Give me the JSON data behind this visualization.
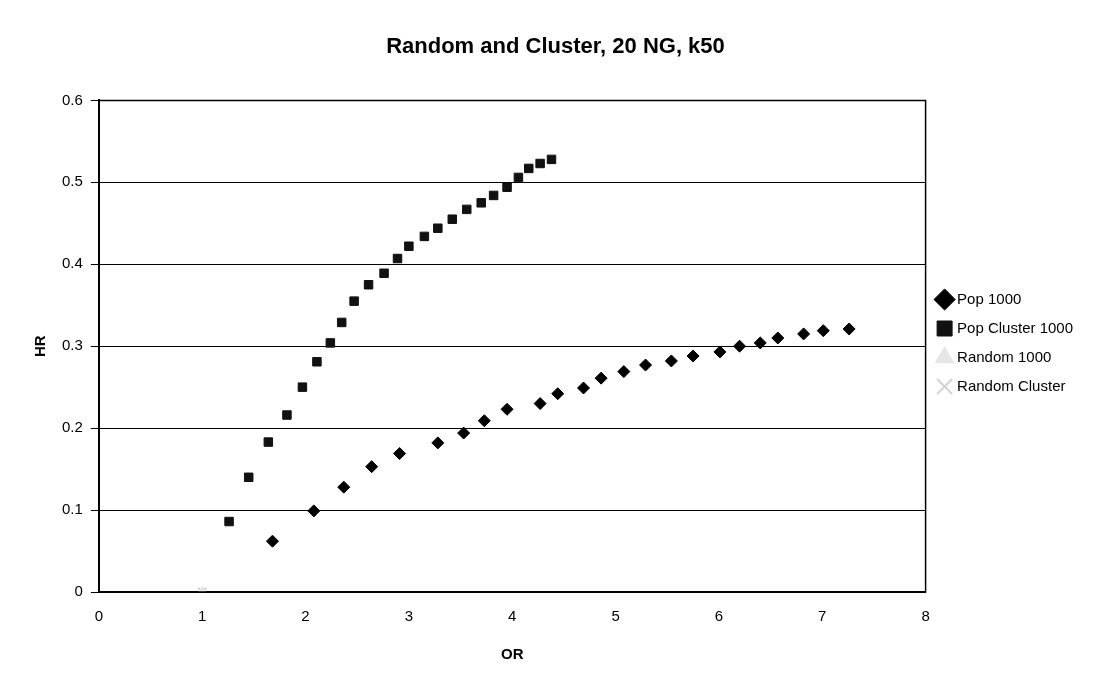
{
  "chart_data": {
    "type": "scatter",
    "title": "Random and Cluster, 20 NG, k50",
    "xlabel": "OR",
    "ylabel": "HR",
    "xlim": [
      0,
      8
    ],
    "xticks": [
      0,
      1,
      2,
      3,
      4,
      5,
      6,
      7,
      8
    ],
    "ylim": [
      0,
      0.6
    ],
    "yticks": [
      0,
      0.1,
      0.2,
      0.3,
      0.4,
      0.5,
      0.6
    ],
    "grid": "y",
    "legend": "right",
    "series": [
      {
        "name": "Pop 1000",
        "color": "#000000",
        "marker": "diamond",
        "x": [
          1.68,
          2.08,
          2.37,
          2.64,
          2.91,
          3.28,
          3.53,
          3.73,
          3.95,
          4.27,
          4.44,
          4.69,
          4.86,
          5.08,
          5.29,
          5.54,
          5.75,
          6.01,
          6.2,
          6.4,
          6.57,
          6.82,
          7.01,
          7.26
        ],
        "values": [
          0.062,
          0.099,
          0.128,
          0.153,
          0.169,
          0.182,
          0.194,
          0.209,
          0.223,
          0.23,
          0.242,
          0.249,
          0.261,
          0.269,
          0.277,
          0.282,
          0.288,
          0.293,
          0.3,
          0.304,
          0.31,
          0.315,
          0.319,
          0.321
        ]
      },
      {
        "name": "Pop Cluster 1000",
        "color": "#111111",
        "marker": "square",
        "x": [
          1.26,
          1.45,
          1.64,
          1.82,
          1.97,
          2.11,
          2.24,
          2.35,
          2.47,
          2.61,
          2.76,
          2.89,
          3.0,
          3.15,
          3.28,
          3.42,
          3.56,
          3.7,
          3.82,
          3.95,
          4.06,
          4.16,
          4.27,
          4.38
        ],
        "values": [
          0.086,
          0.14,
          0.183,
          0.216,
          0.25,
          0.281,
          0.304,
          0.329,
          0.355,
          0.375,
          0.389,
          0.407,
          0.422,
          0.434,
          0.444,
          0.455,
          0.467,
          0.475,
          0.484,
          0.494,
          0.506,
          0.517,
          0.523,
          0.528
        ]
      },
      {
        "name": "Random 1000",
        "color": "#e6e6e6",
        "marker": "triangle",
        "x": [
          1
        ],
        "values": [
          0
        ]
      },
      {
        "name": "Random Cluster",
        "color": "#d4d4d4",
        "marker": "cross",
        "x": [
          1
        ],
        "values": [
          0
        ]
      }
    ]
  }
}
